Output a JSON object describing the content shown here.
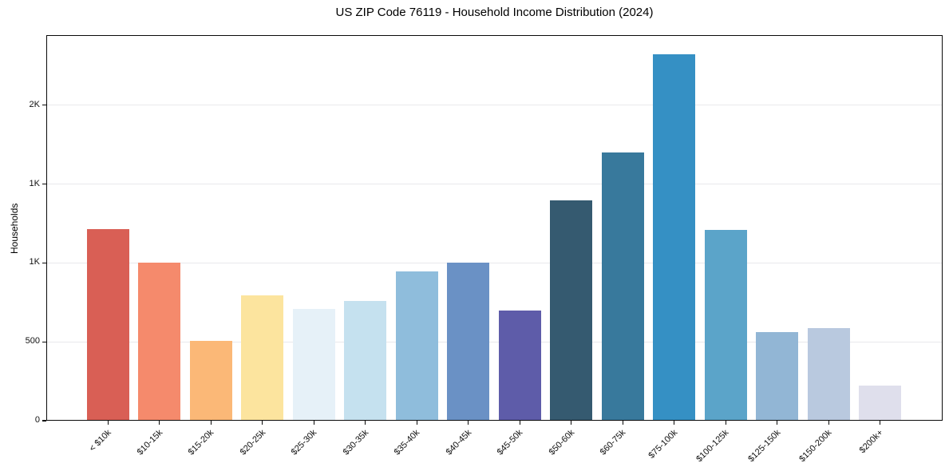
{
  "title": "US ZIP Code 76119 - Household Income Distribution (2024)",
  "chart_data": {
    "type": "bar",
    "title": "US ZIP Code 76119 - Household Income Distribution (2024)",
    "xlabel": "",
    "ylabel": "Households",
    "categories": [
      "< $10k",
      "$10-15k",
      "$15-20k",
      "$20-25k",
      "$25-30k",
      "$30-35k",
      "$35-40k",
      "$40-45k",
      "$45-50k",
      "$50-60k",
      "$60-75k",
      "$75-100k",
      "$100-125k",
      "$125-150k",
      "$150-200k",
      "$200k+"
    ],
    "values": [
      1215,
      1000,
      505,
      795,
      710,
      760,
      945,
      1000,
      700,
      1395,
      1700,
      2325,
      1210,
      560,
      585,
      225
    ],
    "bar_colors": [
      "#d95f55",
      "#f58a6c",
      "#fbb877",
      "#fce49e",
      "#e6f1f8",
      "#c5e1ef",
      "#8fbddc",
      "#6a91c5",
      "#5e5ca9",
      "#355a70",
      "#38799c",
      "#3590c4",
      "#5ba4c9",
      "#92b6d5",
      "#b9c9df",
      "#dfdfec"
    ],
    "ylim": [
      0,
      2445
    ],
    "yticks": [
      {
        "value": 0,
        "label": "0"
      },
      {
        "value": 500,
        "label": "500"
      },
      {
        "value": 1000,
        "label": "1K"
      },
      {
        "value": 1500,
        "label": "1K"
      },
      {
        "value": 2000,
        "label": "2K"
      }
    ],
    "grid": "horizontal",
    "grid_color": "#e9e9ec",
    "frame_color": "#0a0a0a",
    "background_color": "#ffffff",
    "legend": "none"
  }
}
